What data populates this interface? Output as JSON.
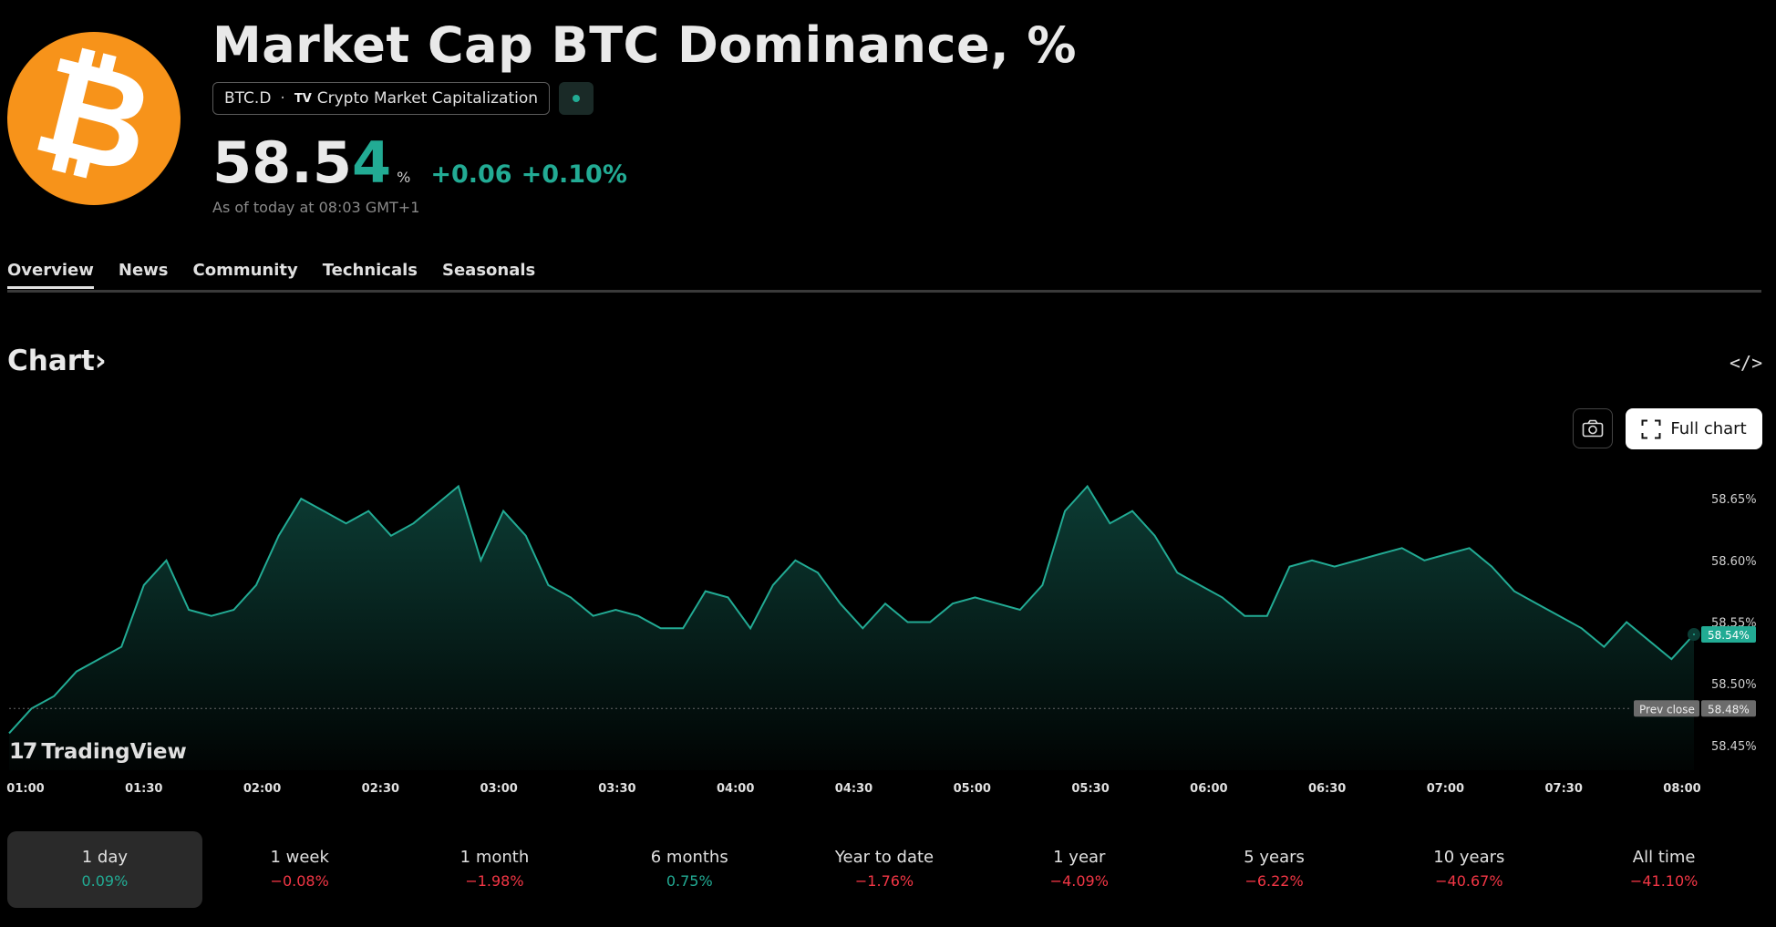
{
  "header": {
    "logo_glyph": "₿",
    "title": "Market Cap BTC Dominance, %",
    "symbol": "BTC.D",
    "separator": "·",
    "source_icon": "TV",
    "source": "Crypto Market Capitalization",
    "price_main": "58.5",
    "price_last_digit": "4",
    "price_unit": "%",
    "change_abs": "+0.06",
    "change_pct": "+0.10%",
    "as_of": "As of today at 08:03 GMT+1"
  },
  "tabs": [
    {
      "label": "Overview",
      "active": true
    },
    {
      "label": "News",
      "active": false
    },
    {
      "label": "Community",
      "active": false
    },
    {
      "label": "Technicals",
      "active": false
    },
    {
      "label": "Seasonals",
      "active": false
    }
  ],
  "chart_section": {
    "heading": "Chart",
    "chevron": "›",
    "embed_icon": "</>",
    "full_chart_label": "Full chart",
    "brand": "TradingView",
    "brand_mark": "17"
  },
  "chart_data": {
    "type": "area",
    "color": "#22ab94",
    "x_ticks": [
      "01:00",
      "01:30",
      "02:00",
      "02:30",
      "03:00",
      "03:30",
      "04:00",
      "04:30",
      "05:00",
      "05:30",
      "06:00",
      "06:30",
      "07:00",
      "07:30",
      "08:00"
    ],
    "y_ticks": [
      {
        "value": 58.65,
        "label": "58.65%"
      },
      {
        "value": 58.6,
        "label": "58.60%"
      },
      {
        "value": 58.55,
        "label": "58.55%"
      },
      {
        "value": 58.5,
        "label": "58.50%"
      },
      {
        "value": 58.45,
        "label": "58.45%"
      }
    ],
    "ylim": [
      58.43,
      58.67
    ],
    "current": {
      "value": 58.54,
      "label": "58.54%"
    },
    "prev_close": {
      "value": 58.48,
      "label": "58.48%",
      "title": "Prev close"
    },
    "values": [
      58.46,
      58.48,
      58.49,
      58.51,
      58.52,
      58.53,
      58.58,
      58.6,
      58.56,
      58.555,
      58.56,
      58.58,
      58.62,
      58.65,
      58.64,
      58.63,
      58.64,
      58.62,
      58.63,
      58.645,
      58.66,
      58.6,
      58.64,
      58.62,
      58.58,
      58.57,
      58.555,
      58.56,
      58.555,
      58.545,
      58.545,
      58.575,
      58.57,
      58.545,
      58.58,
      58.6,
      58.59,
      58.565,
      58.545,
      58.565,
      58.55,
      58.55,
      58.565,
      58.57,
      58.565,
      58.56,
      58.58,
      58.64,
      58.66,
      58.63,
      58.64,
      58.62,
      58.59,
      58.58,
      58.57,
      58.555,
      58.555,
      58.595,
      58.6,
      58.595,
      58.6,
      58.605,
      58.61,
      58.6,
      58.605,
      58.61,
      58.595,
      58.575,
      58.565,
      58.555,
      58.545,
      58.53,
      58.55,
      58.535,
      58.52,
      58.54
    ]
  },
  "periods": [
    {
      "label": "1 day",
      "value": "0.09%",
      "dir": "up",
      "active": true
    },
    {
      "label": "1 week",
      "value": "−0.08%",
      "dir": "down",
      "active": false
    },
    {
      "label": "1 month",
      "value": "−1.98%",
      "dir": "down",
      "active": false
    },
    {
      "label": "6 months",
      "value": "0.75%",
      "dir": "up",
      "active": false
    },
    {
      "label": "Year to date",
      "value": "−1.76%",
      "dir": "down",
      "active": false
    },
    {
      "label": "1 year",
      "value": "−4.09%",
      "dir": "down",
      "active": false
    },
    {
      "label": "5 years",
      "value": "−6.22%",
      "dir": "down",
      "active": false
    },
    {
      "label": "10 years",
      "value": "−40.67%",
      "dir": "down",
      "active": false
    },
    {
      "label": "All time",
      "value": "−41.10%",
      "dir": "down",
      "active": false
    }
  ]
}
